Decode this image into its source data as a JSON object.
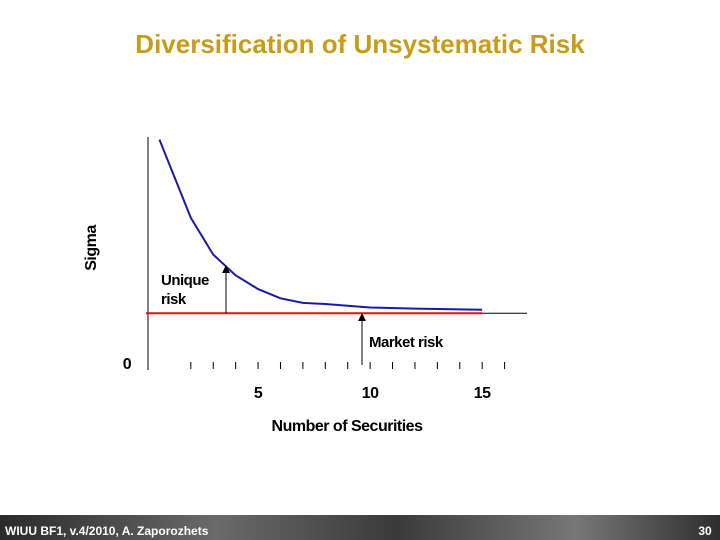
{
  "title": "Diversification of Unsystematic Risk",
  "chart_data": {
    "type": "line",
    "ylabel": "Sigma",
    "xlabel": "Number of Securities",
    "xlim": [
      0,
      17
    ],
    "ylim": [
      0,
      10
    ],
    "xticks": [
      5,
      10,
      15
    ],
    "minor_xticks": [
      2,
      3,
      4,
      6,
      7,
      8,
      9,
      11,
      12,
      13,
      14,
      16
    ],
    "yticks": [
      0
    ],
    "curve": {
      "color": "#1a1aa8",
      "x": [
        0.6,
        2,
        3,
        4,
        5,
        6,
        7,
        8,
        10,
        12,
        15
      ],
      "values": [
        9.8,
        6.4,
        4.8,
        3.9,
        3.3,
        2.9,
        2.7,
        2.65,
        2.5,
        2.45,
        2.4
      ]
    },
    "market_line": {
      "color": "#e01010",
      "x": [
        0,
        15
      ],
      "values": [
        2.25,
        2.25
      ]
    },
    "annotations": [
      "Unique risk",
      "Market risk"
    ]
  },
  "footer": {
    "left": "WIUU BF1, v.4/2010, A. Zaporozhets",
    "page": "30"
  }
}
